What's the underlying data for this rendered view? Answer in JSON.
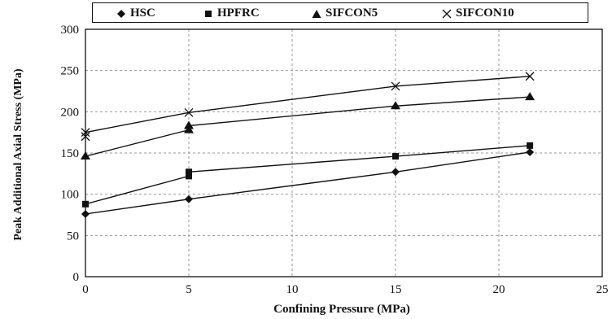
{
  "chart_data": {
    "type": "line",
    "xlabel": "Confining Pressure (MPa)",
    "ylabel": "Peak Additional Axial Stress (MPa)",
    "xlim": [
      0,
      25
    ],
    "ylim": [
      0,
      300
    ],
    "xticks": [
      0,
      5,
      10,
      15,
      20,
      25
    ],
    "yticks": [
      0,
      50,
      100,
      150,
      200,
      250,
      300
    ],
    "grid": true,
    "legend_position": "top",
    "series": [
      {
        "name": "HSC",
        "marker": "diamond",
        "x": [
          0,
          5,
          15,
          21.5
        ],
        "y": [
          76,
          94,
          127,
          151
        ]
      },
      {
        "name": "HPFRC",
        "marker": "square",
        "x": [
          0,
          5,
          5,
          15,
          21.5
        ],
        "y": [
          88,
          122,
          127,
          146,
          159
        ]
      },
      {
        "name": "SIFCON5",
        "marker": "triangle",
        "x": [
          0,
          5,
          5,
          15,
          21.5
        ],
        "y": [
          146,
          178,
          183,
          207,
          218
        ]
      },
      {
        "name": "SIFCON10",
        "marker": "x-cross",
        "x": [
          0,
          0,
          5,
          15,
          21.5
        ],
        "y": [
          170,
          175,
          199,
          231,
          243
        ]
      }
    ]
  },
  "style": {
    "line_color": "#111111",
    "grid_color": "#9a9a9a",
    "background": "#ffffff"
  }
}
